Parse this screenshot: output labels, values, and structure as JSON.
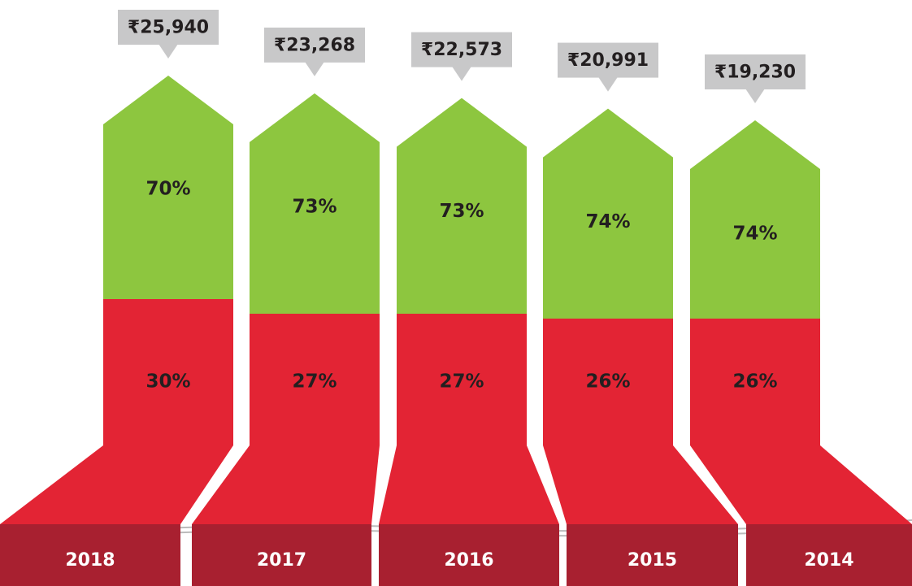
{
  "chart_data": {
    "type": "bar",
    "stacked": true,
    "categories": [
      "2018",
      "2017",
      "2016",
      "2015",
      "2014"
    ],
    "series": [
      {
        "color": "#e32434",
        "values": [
          30,
          27,
          27,
          26,
          26
        ],
        "value_labels": [
          "30%",
          "27%",
          "27%",
          "26%",
          "26%"
        ]
      },
      {
        "color": "#8dc63f",
        "values": [
          70,
          73,
          73,
          74,
          74
        ],
        "value_labels": [
          "70%",
          "73%",
          "73%",
          "74%",
          "74%"
        ]
      }
    ],
    "totals": {
      "color": "#c8c8c9",
      "values": [
        25940,
        23268,
        22573,
        20991,
        19230
      ],
      "value_labels": [
        "₹25,940",
        "₹23,268",
        "₹22,573",
        "₹20,991",
        "₹19,230"
      ]
    },
    "base_color": "#a82030"
  }
}
